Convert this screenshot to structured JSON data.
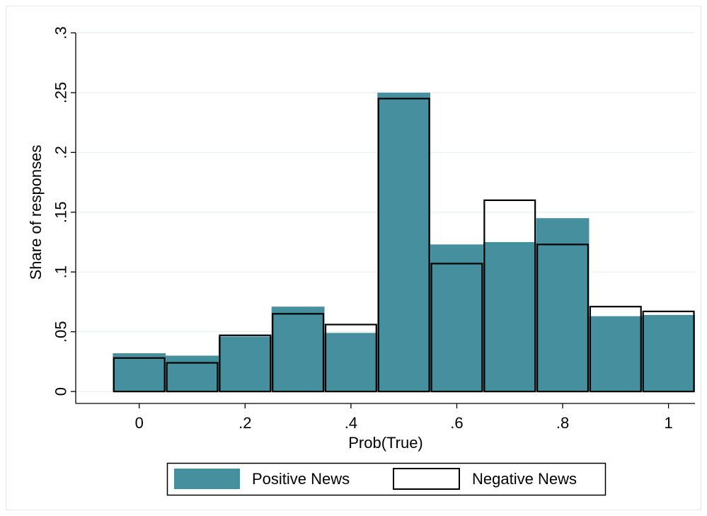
{
  "chart_data": {
    "type": "bar",
    "chart_subtype": "overlaid histogram",
    "title": "",
    "xlabel": "Prob(True)",
    "ylabel": "Share of responses",
    "xlim": [
      -0.12,
      1.05
    ],
    "ylim": [
      -0.01,
      0.305
    ],
    "x_ticks": [
      0,
      0.2,
      0.4,
      0.6,
      0.8,
      1.0
    ],
    "x_tick_labels": [
      "0",
      ".2",
      ".4",
      ".6",
      ".8",
      "1"
    ],
    "y_ticks": [
      0,
      0.05,
      0.1,
      0.15,
      0.2,
      0.25,
      0.3
    ],
    "y_tick_labels": [
      "0",
      ".05",
      ".1",
      ".15",
      ".2",
      ".25",
      ".3"
    ],
    "bin_width": 0.1,
    "x": [
      0.0,
      0.1,
      0.2,
      0.3,
      0.4,
      0.5,
      0.6,
      0.7,
      0.8,
      0.9,
      1.0
    ],
    "grid": "horizontal",
    "legend_position": "bottom",
    "series": [
      {
        "name": "Positive News",
        "style": "filled",
        "color": "#458f9e",
        "values": [
          0.032,
          0.03,
          0.046,
          0.071,
          0.049,
          0.25,
          0.123,
          0.125,
          0.145,
          0.063,
          0.064
        ]
      },
      {
        "name": "Negative News",
        "style": "outline",
        "color": "#000000",
        "values": [
          0.028,
          0.024,
          0.047,
          0.065,
          0.056,
          0.245,
          0.107,
          0.16,
          0.123,
          0.071,
          0.067
        ]
      }
    ]
  },
  "colors": {
    "background": "#ffffff",
    "positive_fill": "#458f9e",
    "negative_outline": "#000000",
    "grid": "#e8eef0",
    "frame_border": "#e6e6e6"
  }
}
